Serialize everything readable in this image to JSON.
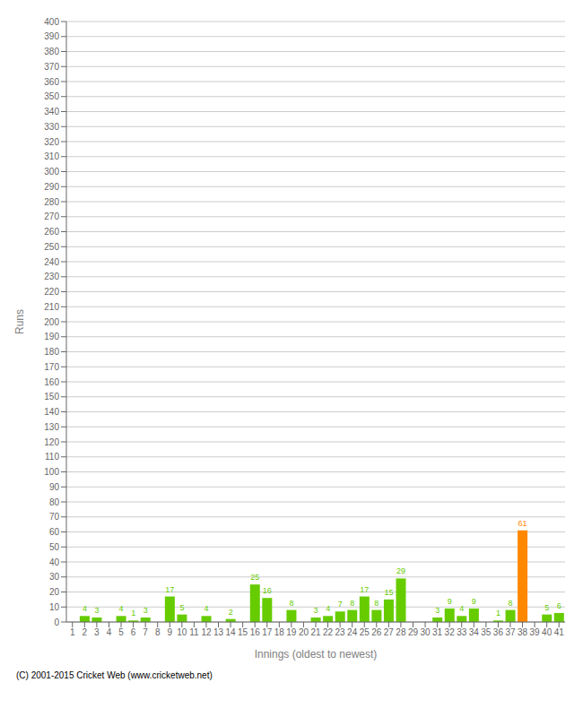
{
  "chart_data": {
    "type": "bar",
    "xlabel": "Innings (oldest to newest)",
    "ylabel": "Runs",
    "annotations": [
      "(C) 2001-2015 Cricket Web (www.cricketweb.net)"
    ],
    "categories": [
      "1",
      "2",
      "3",
      "4",
      "5",
      "6",
      "7",
      "8",
      "9",
      "10",
      "11",
      "12",
      "13",
      "14",
      "15",
      "16",
      "17",
      "18",
      "19",
      "20",
      "21",
      "22",
      "23",
      "24",
      "25",
      "26",
      "27",
      "28",
      "29",
      "30",
      "31",
      "32",
      "33",
      "34",
      "35",
      "36",
      "37",
      "38",
      "39",
      "40",
      "41"
    ],
    "values": [
      0,
      4,
      3,
      0,
      4,
      1,
      3,
      0,
      17,
      5,
      0,
      4,
      0,
      2,
      0,
      25,
      16,
      0,
      8,
      0,
      3,
      4,
      7,
      8,
      17,
      8,
      15,
      29,
      0,
      0,
      3,
      9,
      4,
      9,
      0,
      1,
      8,
      61,
      0,
      5,
      6
    ],
    "colors": [
      "#66cc00",
      "#66cc00",
      "#66cc00",
      "#66cc00",
      "#66cc00",
      "#66cc00",
      "#66cc00",
      "#66cc00",
      "#66cc00",
      "#66cc00",
      "#66cc00",
      "#66cc00",
      "#66cc00",
      "#66cc00",
      "#66cc00",
      "#66cc00",
      "#66cc00",
      "#66cc00",
      "#66cc00",
      "#66cc00",
      "#66cc00",
      "#66cc00",
      "#66cc00",
      "#66cc00",
      "#66cc00",
      "#66cc00",
      "#66cc00",
      "#66cc00",
      "#66cc00",
      "#66cc00",
      "#66cc00",
      "#66cc00",
      "#66cc00",
      "#66cc00",
      "#66cc00",
      "#66cc00",
      "#66cc00",
      "#ff8800",
      "#66cc00",
      "#66cc00",
      "#66cc00"
    ],
    "ylim": [
      0,
      400
    ],
    "yticks": [
      0,
      10,
      20,
      30,
      40,
      50,
      60,
      70,
      80,
      90,
      100,
      110,
      120,
      130,
      140,
      150,
      160,
      170,
      180,
      190,
      200,
      210,
      220,
      230,
      240,
      250,
      260,
      270,
      280,
      290,
      300,
      310,
      320,
      330,
      340,
      350,
      360,
      370,
      380,
      390,
      400
    ],
    "grid": true,
    "data_labels": true
  }
}
